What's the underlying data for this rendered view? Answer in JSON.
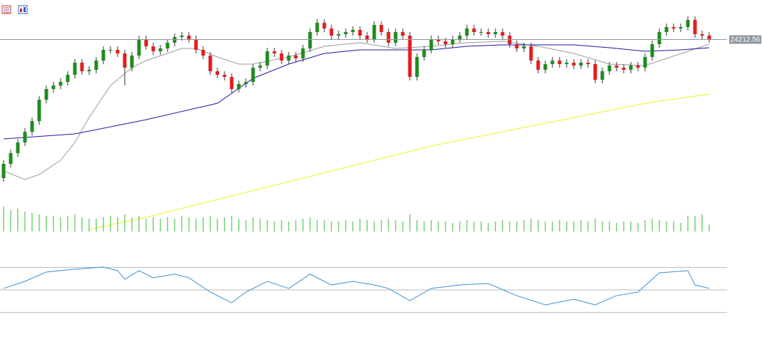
{
  "chart_data": [
    {
      "type": "candlestick",
      "ylim": [
        22840,
        24490
      ],
      "up_color": "#1e8c1e",
      "down_color": "#e51c1c",
      "price_line_color": "#8c96a0",
      "open": [
        23240,
        23340,
        23415,
        23490,
        23565,
        23640,
        23790,
        23865,
        23890,
        23915,
        23965,
        24050,
        23990,
        24000,
        24065,
        24140,
        24140,
        24115,
        24015,
        24100,
        24215,
        24165,
        24130,
        24150,
        24190,
        24230,
        24240,
        24215,
        24140,
        24100,
        23990,
        23965,
        23950,
        23865,
        23900,
        23915,
        24015,
        24030,
        24130,
        24115,
        24065,
        24100,
        24080,
        24150,
        24265,
        24330,
        24290,
        24240,
        24250,
        24265,
        24280,
        24240,
        24215,
        24315,
        24265,
        24190,
        24265,
        24240,
        23950,
        24090,
        24140,
        24215,
        24200,
        24180,
        24215,
        24240,
        24290,
        24265,
        24265,
        24250,
        24265,
        24240,
        24180,
        24150,
        24165,
        24065,
        24000,
        24040,
        24065,
        24040,
        24050,
        24030,
        24050,
        24040,
        23930,
        23990,
        24030,
        24015,
        24000,
        24030,
        24015,
        24090,
        24180,
        24265,
        24300,
        24290,
        24300,
        24350,
        24250,
        24240
      ],
      "high": [
        23365,
        23440,
        23515,
        23590,
        23665,
        23815,
        23890,
        23915,
        23940,
        23990,
        24075,
        24075,
        24025,
        24090,
        24165,
        24165,
        24165,
        24140,
        24125,
        24240,
        24240,
        24190,
        24175,
        24215,
        24255,
        24265,
        24265,
        24240,
        24165,
        24125,
        24015,
        23990,
        23975,
        23925,
        23940,
        24040,
        24055,
        24155,
        24155,
        24140,
        24125,
        24125,
        24175,
        24290,
        24355,
        24355,
        24315,
        24275,
        24290,
        24305,
        24305,
        24265,
        24340,
        24340,
        24290,
        24290,
        24290,
        24265,
        24115,
        24165,
        24240,
        24240,
        24225,
        24240,
        24265,
        24315,
        24315,
        24290,
        24290,
        24290,
        24290,
        24265,
        24205,
        24190,
        24190,
        24090,
        24065,
        24090,
        24090,
        24075,
        24075,
        24075,
        24075,
        24065,
        24015,
        24055,
        24055,
        24040,
        24055,
        24055,
        24115,
        24205,
        24290,
        24325,
        24325,
        24325,
        24375,
        24375,
        24275,
        24265
      ],
      "low": [
        23215,
        23315,
        23390,
        23465,
        23540,
        23615,
        23765,
        23840,
        23865,
        23890,
        23940,
        23965,
        23965,
        23975,
        24040,
        24115,
        24090,
        23890,
        23990,
        24075,
        24140,
        24105,
        24105,
        24125,
        24165,
        24205,
        24190,
        24115,
        24075,
        23965,
        23940,
        23925,
        23840,
        23840,
        23875,
        23890,
        23990,
        24005,
        24090,
        24040,
        24040,
        24055,
        24055,
        24125,
        24240,
        24265,
        24215,
        24215,
        24225,
        24240,
        24215,
        24190,
        24190,
        24240,
        24165,
        24165,
        24215,
        23925,
        23925,
        24065,
        24115,
        24175,
        24155,
        24155,
        24190,
        24215,
        24240,
        24240,
        24225,
        24225,
        24215,
        24155,
        24125,
        24125,
        24040,
        23975,
        23975,
        24015,
        24015,
        24015,
        24005,
        24005,
        24015,
        23905,
        23905,
        23965,
        23990,
        23975,
        23975,
        23990,
        23990,
        24065,
        24155,
        24240,
        24265,
        24265,
        24275,
        24225,
        24215,
        24190
      ],
      "close": [
        23340,
        23415,
        23490,
        23565,
        23640,
        23790,
        23865,
        23890,
        23915,
        23965,
        24050,
        23990,
        24000,
        24065,
        24140,
        24140,
        24115,
        24015,
        24100,
        24215,
        24165,
        24130,
        24150,
        24190,
        24230,
        24240,
        24215,
        24140,
        24100,
        23990,
        23965,
        23950,
        23865,
        23900,
        23915,
        24015,
        24030,
        24130,
        24115,
        24065,
        24100,
        24080,
        24150,
        24265,
        24330,
        24290,
        24240,
        24250,
        24265,
        24280,
        24240,
        24215,
        24315,
        24265,
        24190,
        24265,
        24240,
        23950,
        24090,
        24140,
        24215,
        24200,
        24180,
        24215,
        24240,
        24290,
        24265,
        24265,
        24250,
        24265,
        24240,
        24180,
        24150,
        24165,
        24065,
        24000,
        24040,
        24065,
        24040,
        24050,
        24030,
        24050,
        24040,
        23930,
        23990,
        24030,
        24015,
        24000,
        24030,
        24015,
        24090,
        24180,
        24265,
        24300,
        24290,
        24300,
        24350,
        24250,
        24240,
        24212.56
      ],
      "series": [
        {
          "color": "#9a9a9a",
          "x": [
            0,
            3,
            5,
            8,
            10,
            12,
            15,
            18,
            20,
            23,
            25,
            27,
            30,
            33,
            35,
            40,
            45,
            50,
            55,
            60,
            65,
            70,
            75,
            80,
            85,
            90,
            93,
            96,
            99
          ],
          "values": [
            23290,
            23230,
            23265,
            23365,
            23490,
            23665,
            23890,
            24015,
            24065,
            24115,
            24150,
            24150,
            24090,
            24040,
            24040,
            24090,
            24165,
            24190,
            24150,
            24165,
            24190,
            24200,
            24165,
            24115,
            24040,
            24030,
            24080,
            24130,
            24180
          ]
        },
        {
          "color": "#1a1a9c",
          "x": [
            0,
            10,
            20,
            30,
            35,
            40,
            45,
            50,
            55,
            60,
            65,
            70,
            75,
            80,
            85,
            90,
            95,
            99
          ],
          "values": [
            23515,
            23550,
            23650,
            23765,
            23940,
            24040,
            24115,
            24140,
            24140,
            24140,
            24165,
            24175,
            24175,
            24175,
            24155,
            24130,
            24140,
            24155
          ]
        },
        {
          "color": "#f0f020",
          "x": [
            12,
            20,
            30,
            40,
            50,
            60,
            70,
            80,
            90,
            99
          ],
          "values": [
            22880,
            22965,
            23090,
            23215,
            23340,
            23465,
            23565,
            23665,
            23765,
            23830
          ]
        }
      ]
    },
    {
      "type": "bar",
      "color": "#2db82d",
      "values": [
        35,
        30,
        32,
        28,
        26,
        24,
        22,
        22,
        20,
        22,
        24,
        20,
        18,
        18,
        20,
        22,
        20,
        24,
        20,
        22,
        18,
        20,
        18,
        20,
        18,
        22,
        20,
        18,
        20,
        22,
        18,
        20,
        22,
        18,
        16,
        20,
        18,
        16,
        14,
        16,
        14,
        16,
        18,
        20,
        16,
        16,
        14,
        14,
        16,
        14,
        18,
        16,
        14,
        16,
        18,
        16,
        14,
        24,
        16,
        14,
        16,
        14,
        14,
        12,
        14,
        16,
        14,
        14,
        12,
        14,
        16,
        14,
        14,
        16,
        18,
        16,
        14,
        14,
        16,
        14,
        14,
        16,
        14,
        18,
        14,
        14,
        12,
        14,
        14,
        12,
        16,
        18,
        16,
        14,
        14,
        12,
        22,
        22,
        24,
        10
      ]
    },
    {
      "type": "line",
      "color": "#3d8fd6",
      "ylim": [
        0,
        100
      ],
      "levels": [
        30,
        50,
        70
      ],
      "x": [
        0,
        3,
        6,
        10,
        14,
        16,
        17,
        19,
        21,
        24,
        26,
        29,
        32,
        34,
        37,
        40,
        43,
        46,
        49,
        52,
        54,
        57,
        60,
        64,
        68,
        72,
        76,
        80,
        83,
        86,
        89,
        92,
        96,
        97,
        99
      ],
      "values": [
        51.3,
        57.6,
        65.9,
        68.4,
        70.3,
        67.1,
        59.5,
        67.1,
        60.8,
        64.0,
        60.8,
        48.1,
        38.6,
        48.1,
        57.6,
        51.3,
        64.0,
        54.4,
        57.6,
        54.4,
        51.3,
        40.5,
        51.3,
        54.4,
        55.7,
        44.9,
        36.7,
        41.7,
        36.7,
        44.9,
        48.1,
        65.2,
        67.1,
        54.4,
        51.3
      ]
    }
  ]
}
